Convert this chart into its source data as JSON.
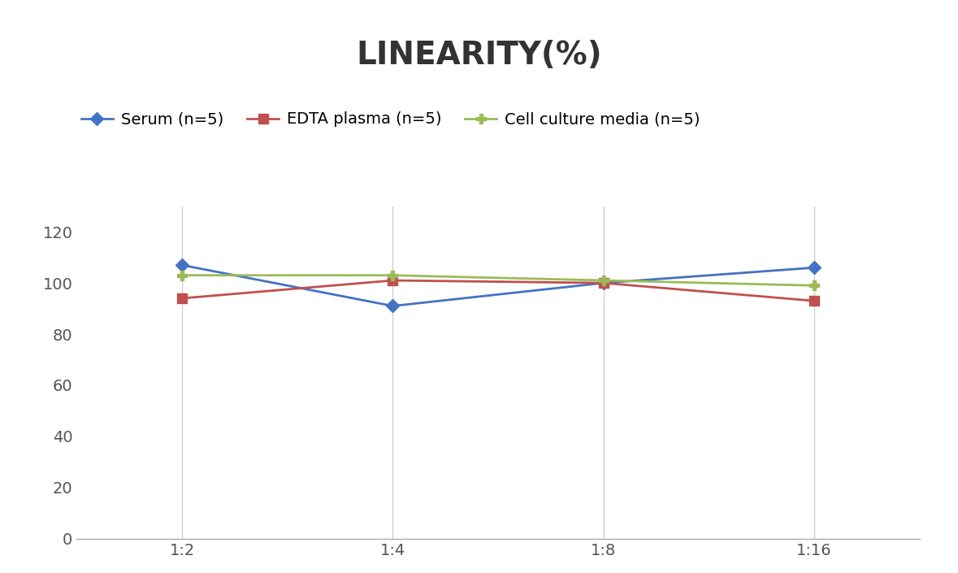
{
  "title": "LINEARITY(%)",
  "title_fontsize": 28,
  "title_fontweight": "bold",
  "title_color": "#333333",
  "x_labels": [
    "1:2",
    "1:4",
    "1:8",
    "1:16"
  ],
  "x_positions": [
    0,
    1,
    2,
    3
  ],
  "series": [
    {
      "label": "Serum (n=5)",
      "values": [
        107,
        91,
        100,
        106
      ],
      "color": "#4472C4",
      "marker": "D",
      "markersize": 8,
      "linewidth": 2
    },
    {
      "label": "EDTA plasma (n=5)",
      "values": [
        94,
        101,
        100,
        93
      ],
      "color": "#C0504D",
      "marker": "s",
      "markersize": 8,
      "linewidth": 2
    },
    {
      "label": "Cell culture media (n=5)",
      "values": [
        103,
        103,
        101,
        99
      ],
      "color": "#9BBB59",
      "marker": "P",
      "markersize": 9,
      "linewidth": 2
    }
  ],
  "ylim": [
    0,
    130
  ],
  "yticks": [
    0,
    20,
    40,
    60,
    80,
    100,
    120
  ],
  "grid_color": "#D0D0D0",
  "background_color": "#FFFFFF",
  "legend_fontsize": 14,
  "tick_fontsize": 14,
  "axis_tick_color": "#555555"
}
